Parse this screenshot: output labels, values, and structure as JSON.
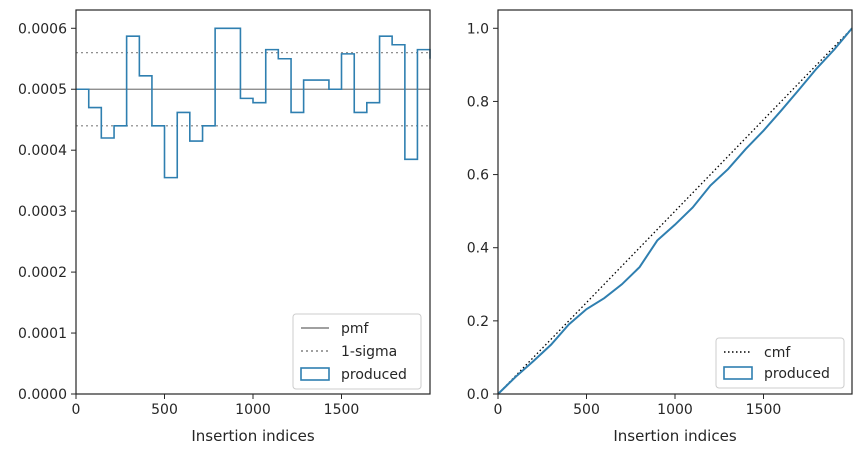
{
  "colors": {
    "step": "#2f7fb0",
    "pmf": "#808080",
    "sigma": "#808080",
    "cmf": "#000000",
    "axes": "#262626"
  },
  "chart_data": [
    {
      "type": "step-histogram",
      "xlabel": "Insertion indices",
      "ylabel": "",
      "xlim": [
        0,
        2000
      ],
      "ylim": [
        0,
        0.00063
      ],
      "xticks": [
        0,
        500,
        1000,
        1500
      ],
      "xtick_labels": [
        "0",
        "500",
        "1000",
        "1500"
      ],
      "yticks": [
        0,
        0.0001,
        0.0002,
        0.0003,
        0.0004,
        0.0005,
        0.0006
      ],
      "ytick_labels": [
        "0.0000",
        "0.0001",
        "0.0002",
        "0.0003",
        "0.0004",
        "0.0005",
        "0.0006"
      ],
      "pmf": 0.0005,
      "sigma_lower": 0.00044,
      "sigma_upper": 0.00056,
      "bin_edges": [
        0,
        72,
        143,
        215,
        286,
        358,
        429,
        500,
        572,
        643,
        715,
        786,
        858,
        929,
        1000,
        1072,
        1143,
        1215,
        1286,
        1358,
        1429,
        1500,
        1572,
        1643,
        1715,
        1786,
        1858,
        1929,
        2000
      ],
      "values": [
        0.0005,
        0.00047,
        0.00042,
        0.00044,
        0.000587,
        0.000522,
        0.00044,
        0.000355,
        0.000462,
        0.000415,
        0.00044,
        0.0006,
        0.0006,
        0.000485,
        0.000478,
        0.000565,
        0.00055,
        0.000462,
        0.000515,
        0.000515,
        0.0005,
        0.000558,
        0.000462,
        0.000478,
        0.000587,
        0.000573,
        0.000385,
        0.000565,
        0.00055
      ],
      "legend": {
        "position": "lower right",
        "entries": [
          "pmf",
          "1-sigma",
          "produced"
        ]
      }
    },
    {
      "type": "line",
      "xlabel": "Insertion indices",
      "ylabel": "",
      "xlim": [
        0,
        2000
      ],
      "ylim": [
        0,
        1.05
      ],
      "xticks": [
        0,
        500,
        1000,
        1500
      ],
      "xtick_labels": [
        "0",
        "500",
        "1000",
        "1500"
      ],
      "yticks": [
        0,
        0.2,
        0.4,
        0.6,
        0.8,
        1.0
      ],
      "ytick_labels": [
        "0.0",
        "0.2",
        "0.4",
        "0.6",
        "0.8",
        "1.0"
      ],
      "cmf": {
        "x": [
          0,
          2000
        ],
        "y": [
          0,
          1.0
        ]
      },
      "produced": {
        "x": [
          0,
          100,
          200,
          300,
          400,
          500,
          600,
          700,
          800,
          900,
          1000,
          1100,
          1200,
          1300,
          1400,
          1500,
          1600,
          1700,
          1800,
          1900,
          2000
        ],
        "y": [
          0,
          0.047,
          0.09,
          0.135,
          0.19,
          0.232,
          0.262,
          0.3,
          0.347,
          0.42,
          0.463,
          0.51,
          0.57,
          0.615,
          0.67,
          0.72,
          0.775,
          0.832,
          0.89,
          0.942,
          1.0
        ]
      },
      "legend": {
        "position": "lower right",
        "entries": [
          "cmf",
          "produced"
        ]
      }
    }
  ]
}
